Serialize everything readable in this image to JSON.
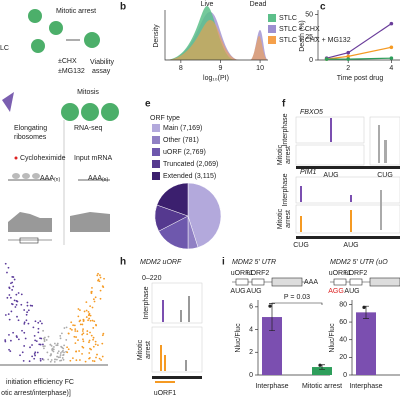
{
  "panel_a": {
    "texts": [
      "LC",
      "Mitotic arrest",
      "±CHX",
      "±MG132"
    ],
    "assay": [
      "Viability",
      "assay"
    ]
  },
  "panel_b": {
    "label": "b",
    "peaks": [
      "Live",
      "Dead"
    ],
    "ylabel": "Density",
    "xlabel": "log₁₀(PI)",
    "xlim": [
      7.6,
      10.2
    ],
    "xticks": [
      8,
      9,
      10
    ],
    "legend": [
      {
        "name": "STLC",
        "color": "#5cbf8a"
      },
      {
        "name": "STLC + CHX",
        "color": "#9d8fd0"
      },
      {
        "name": "STLC + CHX + MG132",
        "color": "#f5a04a"
      }
    ]
  },
  "panel_c": {
    "type": "line",
    "label": "c",
    "ylabel": "Death (%)",
    "xlabel": "Time post drug",
    "xlim": [
      0.6,
      4.4
    ],
    "xticks": [
      2,
      4
    ],
    "ylim": [
      0,
      55
    ],
    "yticks": [
      0,
      25,
      50
    ],
    "x": [
      1,
      2,
      4
    ],
    "series": [
      {
        "color": "#6a3d9a",
        "values": [
          2,
          8,
          40
        ]
      },
      {
        "color": "#f59a23",
        "values": [
          1,
          4,
          14
        ]
      },
      {
        "color": "#2e9e5b",
        "values": [
          1,
          1,
          2
        ]
      }
    ]
  },
  "schematic": {
    "mitosis": "Mitosis",
    "elongating": [
      "Elongating",
      "ribosomes"
    ],
    "rnaseq": "RNA-seq",
    "chx": "Cycloheximide",
    "input": "Input mRNA",
    "polyA": [
      "AAA",
      "(n)",
      "AAA",
      "(n)"
    ]
  },
  "panel_e": {
    "type": "pie",
    "label": "e",
    "title": "ORF type",
    "categories": [
      "Main (7,169)",
      "Other (781)",
      "uORF (2,769)",
      "Truncated (2,069)",
      "Extended (3,115)"
    ],
    "values": [
      7169,
      781,
      2769,
      2069,
      3115
    ],
    "colors": [
      "#b3a9dc",
      "#9080c4",
      "#6e58ad",
      "#55398f",
      "#3b1f6e"
    ]
  },
  "panel_f": {
    "label": "f",
    "genes": [
      "FBXO5",
      "PIM1"
    ],
    "rows": [
      "Interphase",
      "Mitotic",
      "arrest",
      "Interphase",
      "Mitotic",
      "arrest"
    ],
    "codons": [
      "AUG",
      "CUG",
      "CUG",
      "AUG"
    ]
  },
  "panel_volcano": {
    "xlabel": [
      "initiation efficiency FC",
      "otic arrest/interphase)]"
    ]
  },
  "panel_h": {
    "label": "h",
    "title": "MDM2 uORF",
    "range": "0–220",
    "rows": [
      "Interphase",
      "Mitotic",
      "arrest"
    ],
    "feature": "uORF1"
  },
  "panel_i": {
    "label": "i",
    "left": {
      "type": "bar",
      "title": "MDM2 5′ UTR",
      "orfs": [
        "uORF1",
        "uORF2"
      ],
      "codons": [
        "AUG",
        "AUG"
      ],
      "polyA": "AAA",
      "pvalue": "P = 0.03",
      "ylabel": "Nluc/Fluc",
      "ylim": [
        0,
        6.6
      ],
      "yticks": [
        0,
        2,
        4,
        6
      ],
      "categories": [
        "Interphase",
        "Mitotic arrest"
      ],
      "values": [
        5.1,
        0.7
      ],
      "errors": [
        1.2,
        0.2
      ],
      "colors": [
        "#7b4fb0",
        "#2e9e5b"
      ]
    },
    "right": {
      "type": "bar",
      "title": "MDM2 5′ UTR (uO",
      "orfs": [
        "uORF1",
        "uORF2"
      ],
      "codons": [
        "AGG",
        "AUG"
      ],
      "ylabel": "Nluc/Fluc",
      "ylim": [
        0,
        85
      ],
      "yticks": [
        0,
        20,
        40,
        60,
        80
      ],
      "categories": [
        "Interphase"
      ],
      "values": [
        71
      ],
      "errors": [
        7
      ],
      "colors": [
        "#7b4fb0"
      ]
    }
  }
}
